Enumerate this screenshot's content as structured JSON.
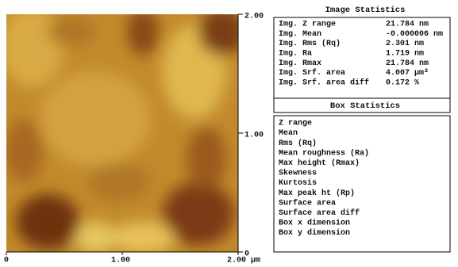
{
  "image": {
    "y_ticks": [
      "2.00",
      "1.00",
      "0"
    ],
    "x_ticks": [
      "0",
      "1.00",
      "2.00 µm"
    ]
  },
  "image_statistics": {
    "title": "Image Statistics",
    "rows": [
      [
        "Img. Z range",
        "21.784 nm"
      ],
      [
        "Img. Mean",
        "-0.000006 nm"
      ],
      [
        "Img. Rms (Rq)",
        "2.301 nm"
      ],
      [
        "Img. Ra",
        "1.719 nm"
      ],
      [
        "Img. Rmax",
        "21.784 nm"
      ],
      [
        "Img. Srf. area",
        "4.007 µm²"
      ],
      [
        "Img. Srf. area diff",
        "0.172 %"
      ]
    ]
  },
  "box_statistics": {
    "title": "Box Statistics",
    "rows": [
      "Z range",
      "Mean",
      "Rms (Rq)",
      "Mean roughness (Ra)",
      "Max height (Rmax)",
      "Skewness",
      "Kurtosis",
      "Max peak ht (Rp)",
      "Surface area",
      "Surface area diff",
      "Box x dimension",
      "Box y dimension"
    ]
  }
}
